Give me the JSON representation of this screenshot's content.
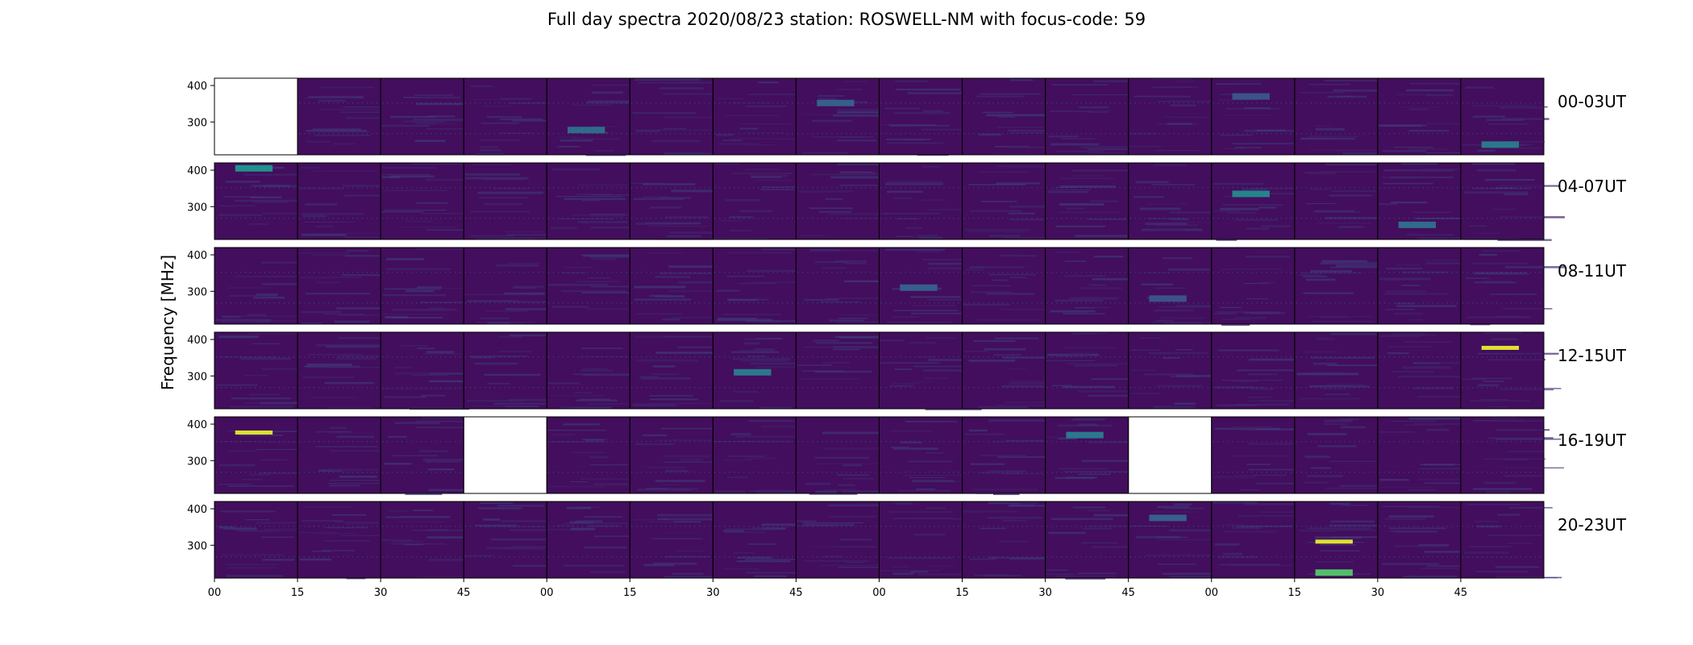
{
  "chart_data": {
    "type": "heatmap",
    "title": "Full day spectra 2020/08/23 station: ROSWELL-NM with focus-code: 59",
    "ylabel": "Frequency [MHz]",
    "xlabel": "",
    "yticks": [
      300,
      400
    ],
    "ylim": [
      210,
      420
    ],
    "xticks": [
      "00",
      "15",
      "30",
      "45",
      "00",
      "15",
      "30",
      "45",
      "00",
      "15",
      "30",
      "45",
      "00",
      "15",
      "30",
      "45"
    ],
    "colormap": "viridis",
    "panels_per_row": 16,
    "rows": [
      {
        "label": "00-03UT",
        "missing_panels": [
          0
        ],
        "features": [
          {
            "panel": 4,
            "freq": 278,
            "intensity": 0.35
          },
          {
            "panel": 7,
            "freq": 352,
            "intensity": 0.3
          },
          {
            "panel": 12,
            "freq": 370,
            "intensity": 0.25
          },
          {
            "panel": 15,
            "freq": 238,
            "intensity": 0.4
          }
        ]
      },
      {
        "label": "04-07UT",
        "missing_panels": [],
        "features": [
          {
            "panel": 0,
            "freq": 405,
            "intensity": 0.5
          },
          {
            "panel": 12,
            "freq": 335,
            "intensity": 0.45
          },
          {
            "panel": 14,
            "freq": 250,
            "intensity": 0.35
          }
        ]
      },
      {
        "label": "08-11UT",
        "missing_panels": [],
        "features": [
          {
            "panel": 8,
            "freq": 310,
            "intensity": 0.3
          },
          {
            "panel": 11,
            "freq": 280,
            "intensity": 0.25
          }
        ]
      },
      {
        "label": "12-15UT",
        "missing_panels": [],
        "features": [
          {
            "panel": 6,
            "freq": 310,
            "intensity": 0.4
          },
          {
            "panel": 15,
            "freq": 377,
            "intensity": 0.95
          }
        ]
      },
      {
        "label": "16-19UT",
        "missing_panels": [
          3,
          11
        ],
        "features": [
          {
            "panel": 0,
            "freq": 377,
            "intensity": 0.95
          },
          {
            "panel": 10,
            "freq": 370,
            "intensity": 0.4
          }
        ]
      },
      {
        "label": "20-23UT",
        "missing_panels": [],
        "features": [
          {
            "panel": 13,
            "freq": 310,
            "intensity": 0.95
          },
          {
            "panel": 13,
            "freq": 225,
            "intensity": 0.7
          },
          {
            "panel": 11,
            "freq": 375,
            "intensity": 0.3
          }
        ]
      }
    ]
  }
}
